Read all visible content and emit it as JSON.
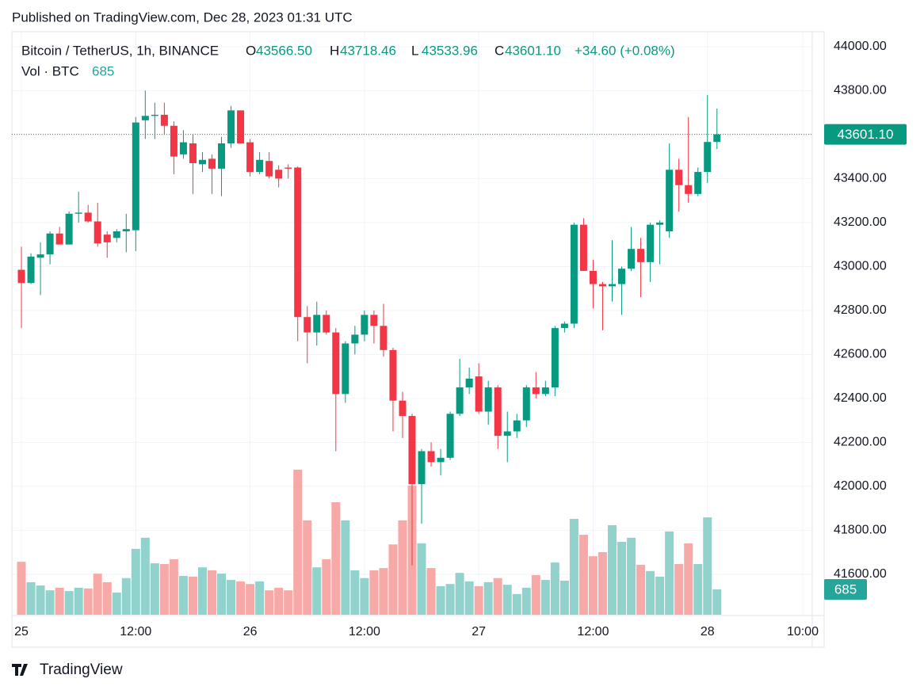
{
  "published": "Published on TradingView.com, Dec 28, 2023 01:31 UTC",
  "brand": "TradingView",
  "chart_data": {
    "type": "candlestick",
    "title": "Bitcoin / TetherUS, 1h, BINANCE",
    "legend": {
      "items": [
        {
          "key": "O",
          "value": "43566.50"
        },
        {
          "key": "H",
          "value": "43718.46"
        },
        {
          "key": "L",
          "value": "43533.96"
        },
        {
          "key": "C",
          "value": "43601.10"
        }
      ],
      "change": "+34.60 (+0.08%)",
      "volume_label": "Vol · BTC"
    },
    "up_color": "#089981",
    "down_color": "#f23645",
    "up_volume_color": "#92d2cc",
    "down_volume_color": "#f7a9a7",
    "open": [
      42985,
      42925,
      43040,
      43055,
      43150,
      43100,
      43240,
      43245,
      43205,
      43145,
      43130,
      43160,
      43165,
      43665,
      43685,
      43690,
      43640,
      43510,
      43560,
      43465,
      43490,
      43445,
      43560,
      43710,
      43565,
      43430,
      43480,
      43440,
      43450,
      43450,
      42770,
      42700,
      42780,
      42700,
      42420,
      42650,
      42690,
      42780,
      42730,
      42620,
      42390,
      42320,
      42010,
      42160,
      42110,
      42130,
      42330,
      42450,
      42500,
      42340,
      42450,
      42230,
      42250,
      42300,
      42450,
      42420,
      42450,
      42720,
      42740,
      43190,
      42980,
      42920,
      42910,
      42920,
      42990,
      43080,
      43020,
      43190,
      43160,
      43440,
      43370,
      43330,
      43430,
      43566.5
    ],
    "high": [
      43090,
      43060,
      43110,
      43160,
      43180,
      43250,
      43340,
      43280,
      43290,
      43160,
      43170,
      43240,
      43680,
      43800,
      43745,
      43745,
      43660,
      43620,
      43600,
      43520,
      43510,
      43590,
      43730,
      43710,
      43580,
      43520,
      43520,
      43460,
      43465,
      43455,
      42820,
      42840,
      42800,
      42720,
      42660,
      42730,
      42800,
      42800,
      42830,
      42630,
      42430,
      42330,
      42170,
      42200,
      42170,
      42340,
      42580,
      42540,
      42560,
      42480,
      42460,
      42340,
      42330,
      42460,
      42520,
      42480,
      42730,
      42750,
      43200,
      43220,
      43030,
      42930,
      43120,
      43000,
      43180,
      43130,
      43200,
      43210,
      43560,
      43490,
      43680,
      43450,
      43780,
      43718.46
    ],
    "low": [
      42720,
      42920,
      42870,
      43010,
      43100,
      43100,
      43200,
      43200,
      43090,
      43040,
      43110,
      43065,
      43070,
      43580,
      43580,
      43600,
      43420,
      43490,
      43330,
      43430,
      43330,
      43320,
      43540,
      43560,
      43410,
      43420,
      43400,
      43360,
      43400,
      42660,
      42560,
      42640,
      42690,
      42160,
      42380,
      42600,
      42660,
      42650,
      42590,
      42250,
      42220,
      41640,
      41830,
      42090,
      42050,
      42120,
      42320,
      42420,
      42330,
      42280,
      42170,
      42110,
      42220,
      42270,
      42400,
      42410,
      42410,
      42700,
      42720,
      42980,
      42810,
      42710,
      42840,
      42780,
      42980,
      42860,
      42930,
      43010,
      43130,
      43250,
      43290,
      43320,
      43380,
      43533.96
    ],
    "close": [
      42925,
      43045,
      43055,
      43150,
      43100,
      43240,
      43245,
      43205,
      43105,
      43110,
      43160,
      43170,
      43655,
      43685,
      43690,
      43640,
      43500,
      43565,
      43470,
      43485,
      43445,
      43560,
      43710,
      43560,
      43430,
      43485,
      43410,
      43400,
      43445,
      42770,
      42700,
      42780,
      42700,
      42420,
      42650,
      42690,
      42780,
      42730,
      42620,
      42390,
      42320,
      42010,
      42160,
      42110,
      42130,
      42330,
      42450,
      42490,
      42340,
      42450,
      42230,
      42250,
      42300,
      42450,
      42420,
      42450,
      42720,
      42740,
      43190,
      42980,
      42920,
      42910,
      42920,
      42990,
      43080,
      43020,
      43190,
      43200,
      43440,
      43370,
      43330,
      43430,
      43566.5,
      43601.1
    ],
    "volume": [
      1430,
      880,
      790,
      660,
      730,
      640,
      730,
      710,
      1110,
      880,
      600,
      990,
      1780,
      2080,
      1390,
      1370,
      1500,
      1050,
      1030,
      1280,
      1200,
      1110,
      940,
      900,
      830,
      900,
      660,
      730,
      660,
      3920,
      2550,
      1280,
      1500,
      3040,
      2550,
      1200,
      990,
      1200,
      1260,
      1900,
      2550,
      3490,
      1930,
      1260,
      770,
      830,
      1130,
      900,
      770,
      880,
      990,
      810,
      560,
      730,
      1070,
      940,
      1410,
      920,
      2590,
      2160,
      1580,
      1690,
      2420,
      1970,
      2080,
      1350,
      1180,
      1030,
      2250,
      1370,
      1930,
      1370,
      2630,
      685
    ],
    "last_price": {
      "value": 43601.1,
      "label": "43601.10"
    },
    "xlim": [
      -1,
      83
    ],
    "xticks": [
      {
        "value": 0,
        "label": "25"
      },
      {
        "value": 12,
        "label": "12:00"
      },
      {
        "value": 24,
        "label": "26"
      },
      {
        "value": 36,
        "label": "12:00"
      },
      {
        "value": 48,
        "label": "27"
      },
      {
        "value": 60,
        "label": "12:00"
      },
      {
        "value": 72,
        "label": "28"
      },
      {
        "value": 82,
        "label": "10:00"
      }
    ],
    "ylim": [
      41416,
      44068
    ],
    "yticks": [
      {
        "value": 41600,
        "label": "41600.00"
      },
      {
        "value": 41800,
        "label": "41800.00"
      },
      {
        "value": 42000,
        "label": "42000.00"
      },
      {
        "value": 42200,
        "label": "42200.00"
      },
      {
        "value": 42400,
        "label": "42400.00"
      },
      {
        "value": 42600,
        "label": "42600.00"
      },
      {
        "value": 42800,
        "label": "42800.00"
      },
      {
        "value": 43000,
        "label": "43000.00"
      },
      {
        "value": 43200,
        "label": "43200.00"
      },
      {
        "value": 43400,
        "label": "43400.00"
      },
      {
        "value": 43600,
        "label": "43600.00"
      },
      {
        "value": 43800,
        "label": "43800.00"
      },
      {
        "value": 44000,
        "label": "44000.00"
      }
    ],
    "volume_ylim": [
      0,
      15750
    ],
    "grid": true
  }
}
